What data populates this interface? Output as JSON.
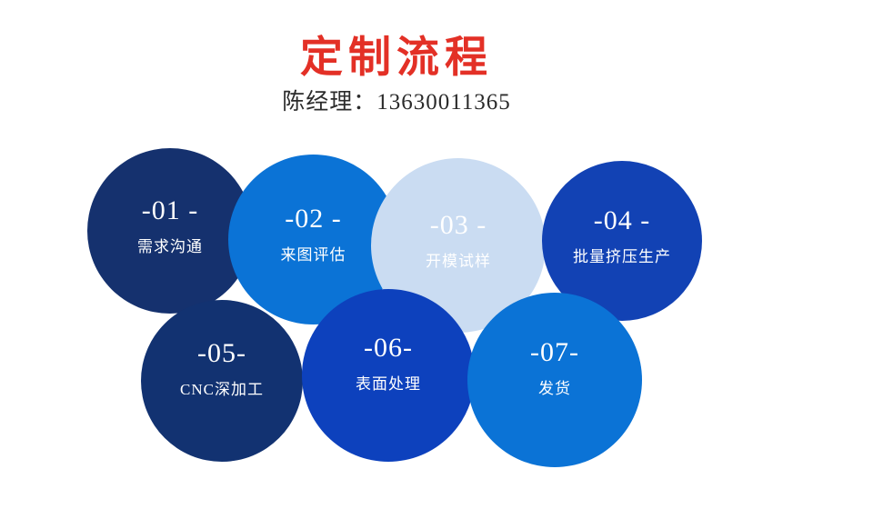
{
  "page": {
    "background": "#ffffff"
  },
  "header": {
    "title": "定制流程",
    "title_color": "#e33026",
    "subtitle": "陈经理：13630011365",
    "subtitle_color": "#2b2b2b"
  },
  "steps": [
    {
      "number": "-01 -",
      "label": "需求沟通",
      "color": "#15316e",
      "text_color": "#ffffff"
    },
    {
      "number": "-02 -",
      "label": "来图评估",
      "color": "#0b73d6",
      "text_color": "#ffffff"
    },
    {
      "number": "-03 -",
      "label": "开模试样",
      "color": "#cadcf2",
      "text_color": "#ffffff"
    },
    {
      "number": "-04 -",
      "label": "批量挤压生产",
      "color": "#1242b4",
      "text_color": "#ffffff"
    },
    {
      "number": "-05-",
      "label": "CNC深加工",
      "color": "#123271",
      "text_color": "#ffffff"
    },
    {
      "number": "-06-",
      "label": "表面处理",
      "color": "#0d41bd",
      "text_color": "#ffffff"
    },
    {
      "number": "-07-",
      "label": "发货",
      "color": "#0b73d6",
      "text_color": "#ffffff"
    }
  ]
}
